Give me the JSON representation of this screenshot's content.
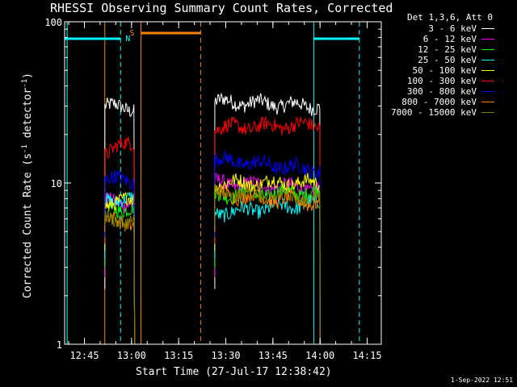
{
  "chart_data": {
    "type": "line",
    "title": "RHESSI Observing Summary Count Rates, Corrected",
    "xlabel": "Start Time (27-Jul-17 12:38:42)",
    "ylabel_main": "Corrected Count Rate (s",
    "ylabel_sup1": "-1",
    "ylabel_mid": " detector",
    "ylabel_sup2": "-1",
    "ylabel_end": ")",
    "y_scale": "log",
    "ylim": [
      1,
      100
    ],
    "x_range_minutes": [
      "12:38:42",
      "14:19:30"
    ],
    "x_ticks": [
      "12:45",
      "13:00",
      "13:15",
      "13:30",
      "13:45",
      "14:00",
      "14:15"
    ],
    "y_ticks": [
      "1",
      "10",
      "100"
    ],
    "legend_title": "Det 1,3,6, Att 0",
    "legend_placement": "right",
    "series": [
      {
        "name": "3 - 6 keV",
        "color": "#ffffff",
        "segments": [
          [
            30,
            29
          ],
          [
            32,
            30
          ]
        ]
      },
      {
        "name": "6 - 12 keV",
        "color": "#ff00ff",
        "segments": [
          [
            7.6,
            7.6
          ],
          [
            10,
            9.2
          ]
        ]
      },
      {
        "name": "12 - 25 keV",
        "color": "#00ff00",
        "segments": [
          [
            7.2,
            6.8
          ],
          [
            8.4,
            8.8
          ]
        ]
      },
      {
        "name": "25 - 50 keV",
        "color": "#00ffff",
        "segments": [
          [
            8.0,
            7.8
          ],
          [
            6.5,
            7.5
          ]
        ]
      },
      {
        "name": "50 - 100 keV",
        "color": "#ffff00",
        "segments": [
          [
            7.5,
            7.8
          ],
          [
            10.0,
            10.0
          ]
        ]
      },
      {
        "name": "100 - 300 keV",
        "color": "#ff0000",
        "segments": [
          [
            15.5,
            18
          ],
          [
            22,
            23
          ]
        ]
      },
      {
        "name": "300 - 800 keV",
        "color": "#0000ff",
        "segments": [
          [
            10.5,
            10.5
          ],
          [
            14,
            12
          ]
        ]
      },
      {
        "name": "800 - 7000 keV",
        "color": "#ff8000",
        "segments": [
          [
            6.0,
            5.6
          ],
          [
            8.6,
            7.5
          ]
        ]
      },
      {
        "name": "7000 - 15000 keV",
        "color": "#808000",
        "segments": [
          [
            6.0,
            5.8
          ],
          [
            8.6,
            8.0
          ]
        ]
      }
    ],
    "data_intervals": [
      [
        "12:51:30",
        "13:01:00"
      ],
      [
        "13:26:30",
        "14:00:00"
      ]
    ],
    "flags": [
      {
        "label": "N",
        "color": "#00ffff",
        "segments": [
          [
            "12:38:42",
            "12:56:30"
          ],
          [
            "13:58:00",
            "14:12:30"
          ]
        ]
      },
      {
        "label": "S",
        "color": "#ff8000",
        "segments": [
          [
            "13:03:00",
            "13:22:00"
          ]
        ]
      }
    ],
    "vlines": [
      {
        "time": "12:39:30",
        "color": "#00ffff",
        "style": "solid"
      },
      {
        "time": "12:56:30",
        "color": "#00ffff",
        "style": "dashed"
      },
      {
        "time": "12:51:30",
        "color": "#ff8000",
        "style": "solid"
      },
      {
        "time": "13:03:00",
        "color": "#ff8000",
        "style": "solid"
      },
      {
        "time": "13:22:00",
        "color": "#ff8000",
        "style": "dashed"
      },
      {
        "time": "13:58:00",
        "color": "#00ffff",
        "style": "solid"
      },
      {
        "time": "14:12:30",
        "color": "#00ffff",
        "style": "dashed"
      }
    ]
  },
  "timestamp": "1-Sep-2022 12:51"
}
